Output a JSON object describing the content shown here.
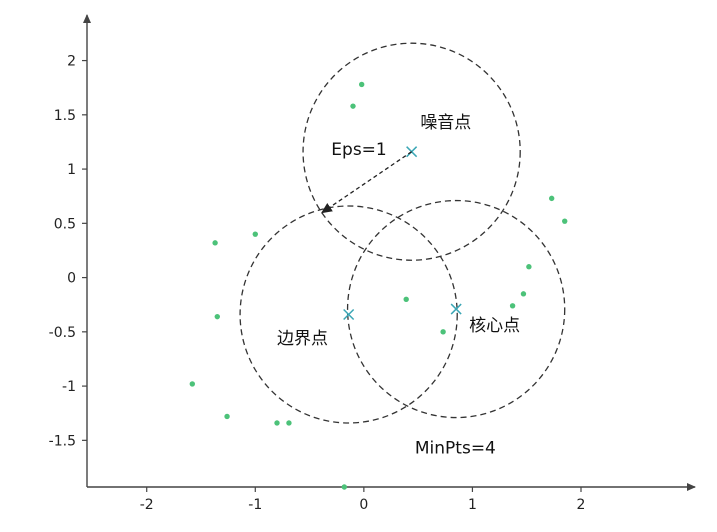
{
  "chart_data": {
    "type": "scatter",
    "title": "",
    "xlabel": "",
    "ylabel": "",
    "x_ticks": [
      {
        "value": -2,
        "label": "-2"
      },
      {
        "value": -1,
        "label": "-1"
      },
      {
        "value": 0,
        "label": "0"
      },
      {
        "value": 1,
        "label": "1"
      },
      {
        "value": 2,
        "label": "2"
      }
    ],
    "y_ticks": [
      {
        "value": -1.5,
        "label": "-1.5"
      },
      {
        "value": -1,
        "label": "-1"
      },
      {
        "value": -0.5,
        "label": "-0.5"
      },
      {
        "value": 0,
        "label": "0"
      },
      {
        "value": 0.5,
        "label": "0.5"
      },
      {
        "value": 1,
        "label": "1"
      },
      {
        "value": 1.5,
        "label": "1.5"
      },
      {
        "value": 2,
        "label": "2"
      }
    ],
    "xlim": [
      -2.55,
      3.05
    ],
    "ylim": [
      -1.93,
      2.42
    ],
    "grid": false,
    "eps": 1,
    "points": [
      {
        "x": -0.02,
        "y": 1.78
      },
      {
        "x": -0.1,
        "y": 1.58
      },
      {
        "x": 1.73,
        "y": 0.73
      },
      {
        "x": 1.85,
        "y": 0.52
      },
      {
        "x": -1.37,
        "y": 0.32
      },
      {
        "x": -1.0,
        "y": 0.4
      },
      {
        "x": 1.52,
        "y": 0.1
      },
      {
        "x": 1.47,
        "y": -0.15
      },
      {
        "x": 1.37,
        "y": -0.26
      },
      {
        "x": 0.39,
        "y": -0.2
      },
      {
        "x": 0.73,
        "y": -0.5
      },
      {
        "x": -1.35,
        "y": -0.36
      },
      {
        "x": -1.58,
        "y": -0.98
      },
      {
        "x": -1.26,
        "y": -1.28
      },
      {
        "x": -0.8,
        "y": -1.34
      },
      {
        "x": -0.69,
        "y": -1.34
      },
      {
        "x": -0.18,
        "y": -1.93
      }
    ],
    "special_points": [
      {
        "name": "noise",
        "x": 0.44,
        "y": 1.16
      },
      {
        "name": "border",
        "x": -0.14,
        "y": -0.34
      },
      {
        "name": "core",
        "x": 0.85,
        "y": -0.29
      }
    ],
    "colors": {
      "point": "#4cc279",
      "special_marker": "#3aa6b5",
      "circle": "#333333",
      "axis": "#444444"
    },
    "annotations": {
      "eps": "Eps=1",
      "noise": "噪音点",
      "border": "边界点",
      "core": "核心点",
      "minpts": "MinPts=4"
    }
  }
}
